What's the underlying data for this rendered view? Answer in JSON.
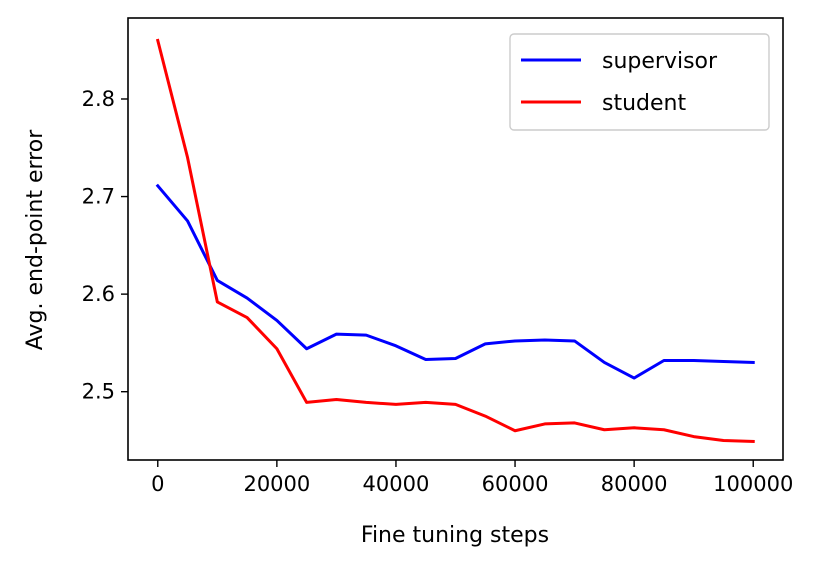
{
  "chart_data": {
    "type": "line",
    "xlabel": "Fine tuning steps",
    "ylabel": "Avg. end-point error",
    "xlim": [
      -5000,
      105000
    ],
    "ylim": [
      2.43,
      2.883
    ],
    "xticks": [
      {
        "value": 0,
        "label": "0"
      },
      {
        "value": 20000,
        "label": "20000"
      },
      {
        "value": 40000,
        "label": "40000"
      },
      {
        "value": 60000,
        "label": "60000"
      },
      {
        "value": 80000,
        "label": "80000"
      },
      {
        "value": 100000,
        "label": "100000"
      }
    ],
    "yticks": [
      {
        "value": 2.5,
        "label": "2.5"
      },
      {
        "value": 2.6,
        "label": "2.6"
      },
      {
        "value": 2.7,
        "label": "2.7"
      },
      {
        "value": 2.8,
        "label": "2.8"
      }
    ],
    "grid": false,
    "legend_position": "top-right",
    "x": [
      0,
      5000,
      10000,
      15000,
      20000,
      25000,
      30000,
      35000,
      40000,
      45000,
      50000,
      55000,
      60000,
      65000,
      70000,
      75000,
      80000,
      85000,
      90000,
      95000,
      100000
    ],
    "series": [
      {
        "name": "supervisor",
        "color": "#0000ff",
        "values": [
          2.711,
          2.675,
          2.614,
          2.596,
          2.573,
          2.544,
          2.559,
          2.558,
          2.547,
          2.533,
          2.534,
          2.549,
          2.552,
          2.553,
          2.552,
          2.53,
          2.514,
          2.532,
          2.532,
          2.531,
          2.53
        ]
      },
      {
        "name": "student",
        "color": "#ff0000",
        "values": [
          2.86,
          2.74,
          2.592,
          2.576,
          2.544,
          2.489,
          2.492,
          2.489,
          2.487,
          2.489,
          2.487,
          2.475,
          2.46,
          2.467,
          2.468,
          2.461,
          2.463,
          2.461,
          2.454,
          2.45,
          2.449
        ]
      }
    ]
  }
}
